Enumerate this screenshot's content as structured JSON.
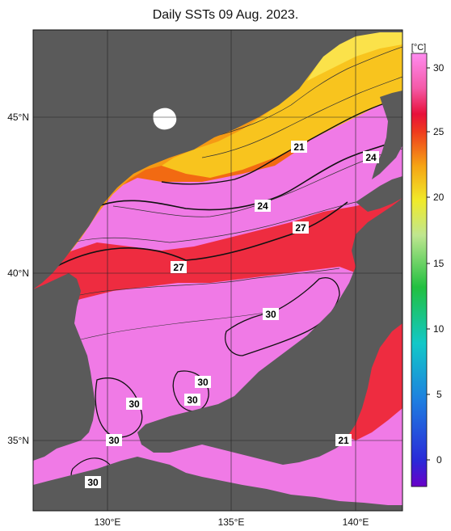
{
  "title": "Daily SSTs 09 Aug. 2023.",
  "map": {
    "lat_labels": [
      "45°N",
      "40°N",
      "35°N"
    ],
    "lon_labels": [
      "130°E",
      "135°E",
      "140°E"
    ],
    "contour_labels": [
      "21",
      "24",
      "24",
      "27",
      "27",
      "30",
      "30",
      "30",
      "30",
      "30",
      "21"
    ]
  },
  "colorbar": {
    "unit": "[°C]",
    "ticks": [
      "30",
      "25",
      "20",
      "15",
      "10",
      "5",
      "0"
    ],
    "range": [
      -2,
      31
    ]
  }
}
